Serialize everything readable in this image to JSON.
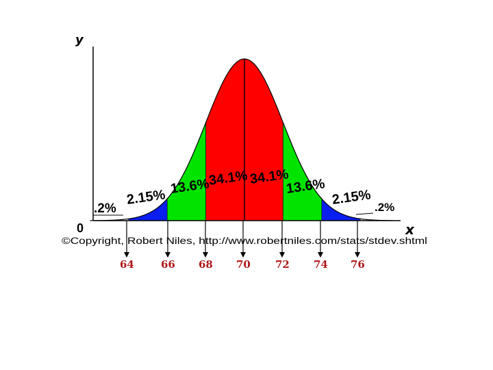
{
  "chart_data": {
    "type": "area",
    "title": "",
    "axis_labels": {
      "y": "y",
      "x": "x",
      "origin": "0"
    },
    "copyright": "©Copyright, Robert Niles, http://www.robertniles.com/stats/stdev.shtml",
    "mean": 70,
    "sd": 2,
    "regions": [
      {
        "from": 64,
        "to": 66,
        "label": "2.15%",
        "color": "#0a1ef0"
      },
      {
        "from": 66,
        "to": 68,
        "label": "13.6%",
        "color": "#00e400"
      },
      {
        "from": 68,
        "to": 70,
        "label": "34.1%",
        "color": "#ff0000"
      },
      {
        "from": 70,
        "to": 72,
        "label": "34.1%",
        "color": "#ff0000"
      },
      {
        "from": 72,
        "to": 74,
        "label": "13.6%",
        "color": "#00e400"
      },
      {
        "from": 74,
        "to": 76,
        "label": "2.15%",
        "color": "#0a1ef0"
      }
    ],
    "tail_labels": {
      "left": ".2%",
      "right": ".2%"
    },
    "ticks": [
      64,
      66,
      68,
      70,
      72,
      74,
      76
    ],
    "tick_color": "#b01818"
  }
}
